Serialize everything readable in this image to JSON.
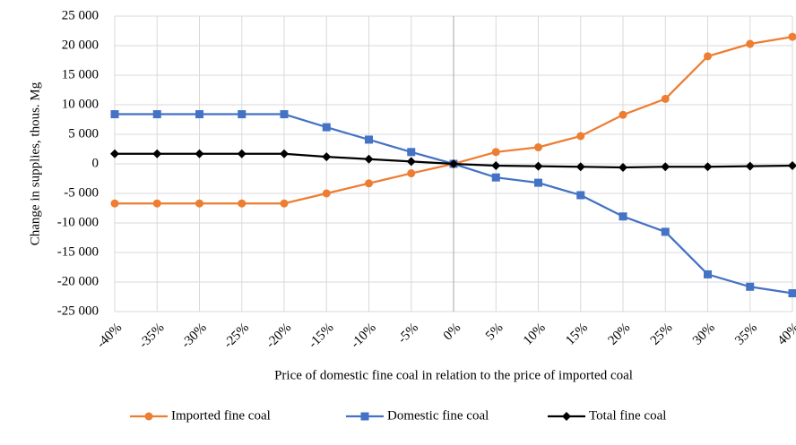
{
  "chart_data": {
    "type": "line",
    "x_label": "Price of domestic fine coal in relation to the price of imported coal",
    "y_label": "Change in supplies, thous. Mg",
    "categories": [
      "-40%",
      "-35%",
      "-30%",
      "-25%",
      "-20%",
      "-15%",
      "-10%",
      "-5%",
      "0%",
      "5%",
      "10%",
      "15%",
      "20%",
      "25%",
      "30%",
      "35%",
      "40%"
    ],
    "series": [
      {
        "name": "Imported fine coal",
        "color": "#ED7D31",
        "marker": "circle",
        "values": [
          -6700,
          -6700,
          -6700,
          -6700,
          -6700,
          -5000,
          -3300,
          -1600,
          0,
          2000,
          2800,
          4700,
          8300,
          11000,
          18200,
          20300,
          21500
        ]
      },
      {
        "name": "Domestic fine coal",
        "color": "#4472C4",
        "marker": "square",
        "values": [
          8400,
          8400,
          8400,
          8400,
          8400,
          6200,
          4100,
          2000,
          0,
          -2300,
          -3200,
          -5300,
          -8900,
          -11500,
          -18700,
          -20800,
          -21900
        ]
      },
      {
        "name": "Total fine coal",
        "color": "#000000",
        "marker": "diamond",
        "values": [
          1700,
          1700,
          1700,
          1700,
          1700,
          1200,
          800,
          400,
          0,
          -300,
          -400,
          -500,
          -600,
          -500,
          -500,
          -400,
          -300
        ]
      }
    ],
    "ylim": [
      -25000,
      25000
    ],
    "yticks": [
      {
        "value": -25000,
        "label": "-25 000"
      },
      {
        "value": -20000,
        "label": "-20 000"
      },
      {
        "value": -15000,
        "label": "-15 000"
      },
      {
        "value": -10000,
        "label": "-10 000"
      },
      {
        "value": -5000,
        "label": "-5 000"
      },
      0,
      {
        "value": 5000,
        "label": "5 000"
      },
      {
        "value": 10000,
        "label": "10 000"
      },
      {
        "value": 15000,
        "label": "15 000"
      },
      {
        "value": 20000,
        "label": "20 000"
      },
      {
        "value": 25000,
        "label": "25 000"
      }
    ],
    "grid": true,
    "legend": "bottom"
  }
}
